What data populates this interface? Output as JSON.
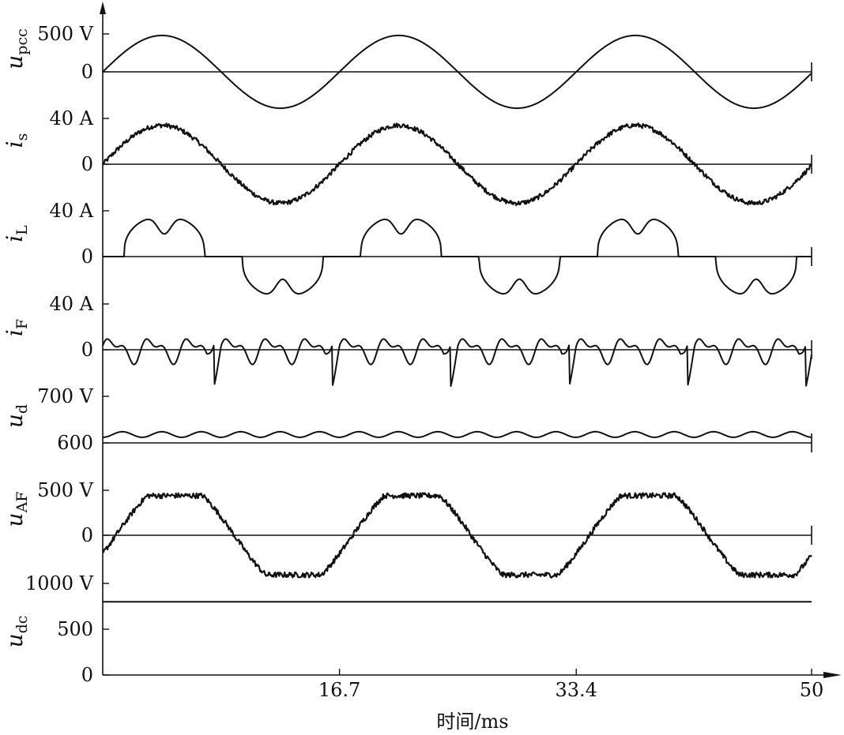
{
  "chart_data": {
    "type": "line",
    "xlabel": "时间/ms",
    "x_ticks": [
      "16.7",
      "33.4",
      "50"
    ],
    "xlim": [
      0,
      50
    ],
    "line_color": "#111111",
    "panels": [
      {
        "id": "upcc",
        "label_main": "u",
        "label_sub": "pcc",
        "ticks": [
          {
            "text": "500 V",
            "value": 500
          },
          {
            "text": "0",
            "value": 0
          }
        ],
        "ylim": [
          -500,
          500
        ],
        "series": {
          "name": "upcc",
          "kind": "sine",
          "amplitude": 480,
          "period_ms": 16.7,
          "phase": 0,
          "noise": 0
        }
      },
      {
        "id": "is",
        "label_main": "i",
        "label_sub": "s",
        "ticks": [
          {
            "text": "40 A",
            "value": 40
          },
          {
            "text": "0",
            "value": 0
          }
        ],
        "ylim": [
          -40,
          40
        ],
        "series": {
          "name": "is",
          "kind": "sine",
          "amplitude": 34,
          "period_ms": 16.7,
          "phase": 0,
          "noise": 2
        }
      },
      {
        "id": "iL",
        "label_main": "i",
        "label_sub": "L",
        "ticks": [
          {
            "text": "40 A",
            "value": 40
          },
          {
            "text": "0",
            "value": 0
          }
        ],
        "ylim": [
          -40,
          40
        ],
        "series": {
          "name": "iL",
          "kind": "rectifier",
          "amplitude": 36,
          "period_ms": 16.7,
          "conduction_start": 0.09,
          "conduction_end": 0.43,
          "noise": 0
        }
      },
      {
        "id": "iF",
        "label_main": "i",
        "label_sub": "F",
        "ticks": [
          {
            "text": "40 A",
            "value": 40
          },
          {
            "text": "0",
            "value": 0
          }
        ],
        "ylim": [
          -40,
          40
        ],
        "series": {
          "name": "iF",
          "kind": "filter",
          "amplitude": 14,
          "period_ms": 16.7,
          "noise": 0
        }
      },
      {
        "id": "ud",
        "label_main": "u",
        "label_sub": "d",
        "ticks": [
          {
            "text": "700 V",
            "value": 700
          },
          {
            "text": "600",
            "value": 600
          }
        ],
        "ylim": [
          600,
          700
        ],
        "series": {
          "name": "ud",
          "kind": "ripple",
          "offset": 612,
          "amplitude": 12,
          "period_ms": 2.78,
          "noise": 0
        }
      },
      {
        "id": "uAF",
        "label_main": "u",
        "label_sub": "AF",
        "ticks": [
          {
            "text": "500 V",
            "value": 500
          },
          {
            "text": "0",
            "value": 0
          }
        ],
        "ylim": [
          -500,
          500
        ],
        "series": {
          "name": "uAF",
          "kind": "flatsine",
          "amplitude": 440,
          "period_ms": 16.7,
          "phase": -0.35,
          "noise": 30
        }
      },
      {
        "id": "udc",
        "label_main": "u",
        "label_sub": "dc",
        "ticks": [
          {
            "text": "1000 V",
            "value": 1000
          },
          {
            "text": "500",
            "value": 500
          },
          {
            "text": "0",
            "value": 0
          }
        ],
        "ylim": [
          0,
          1000
        ],
        "series": {
          "name": "udc",
          "kind": "constant",
          "value": 800,
          "noise": 0
        }
      }
    ]
  }
}
